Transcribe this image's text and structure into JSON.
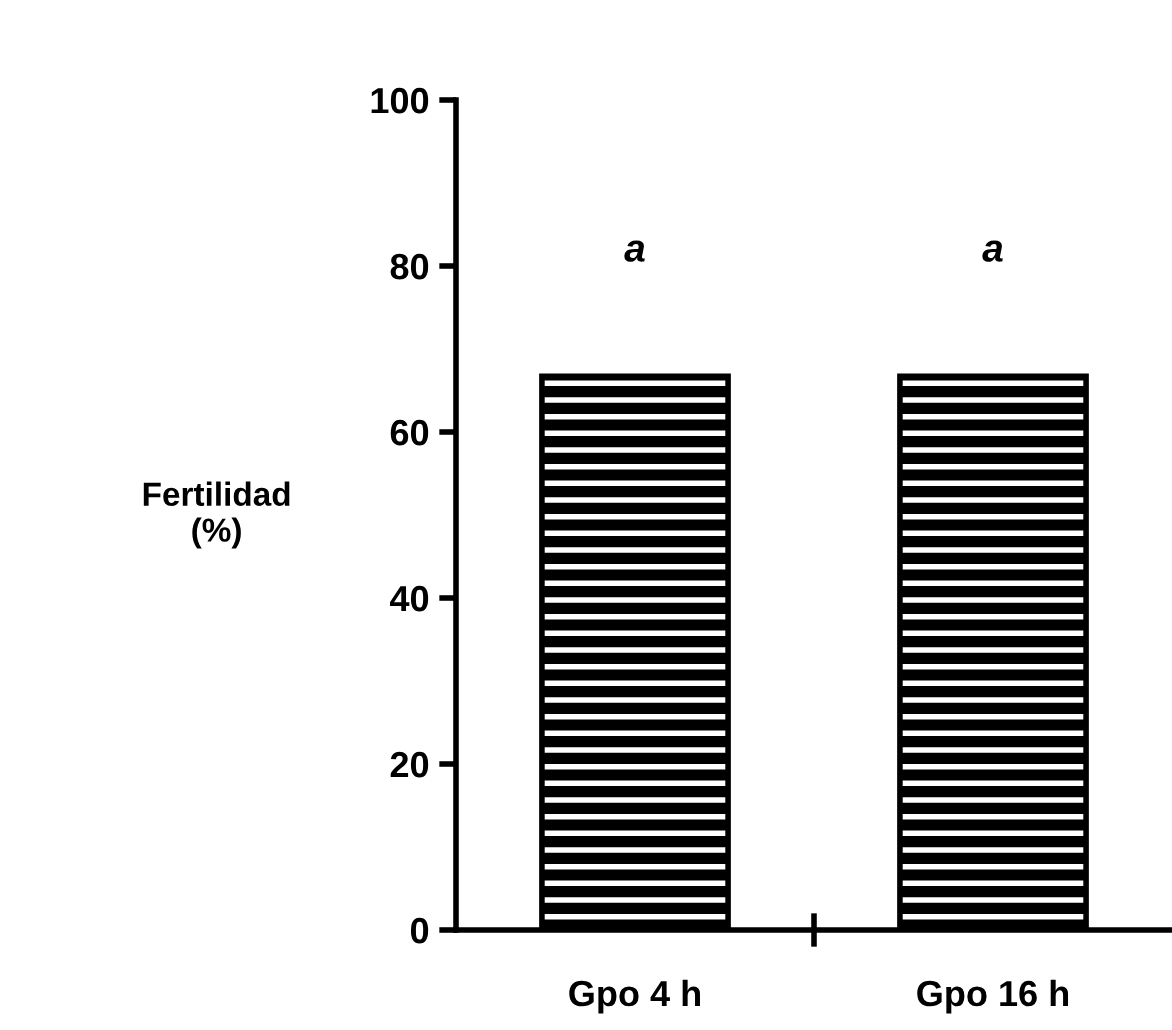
{
  "chart_data": {
    "type": "bar",
    "ylabel": "Fertilidad\n(%)",
    "categories": [
      "Gpo 4 h",
      "Gpo 16 h"
    ],
    "values": [
      66.7,
      66.7
    ],
    "color": "#000000",
    "ylim": [
      0,
      100
    ],
    "yticks": [
      0,
      20,
      40,
      60,
      80,
      100
    ],
    "grid": false,
    "annotations": [
      "a",
      "a"
    ]
  }
}
